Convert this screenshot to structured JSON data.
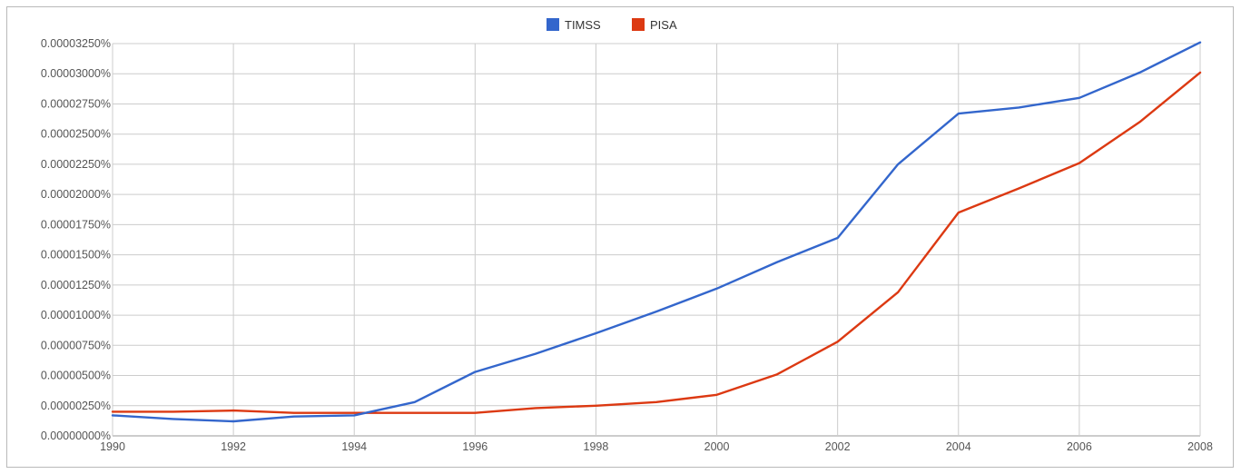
{
  "chart_data": {
    "type": "line",
    "title": "",
    "xlabel": "",
    "ylabel": "",
    "x": [
      1990,
      1991,
      1992,
      1993,
      1994,
      1995,
      1996,
      1997,
      1998,
      1999,
      2000,
      2001,
      2002,
      2003,
      2004,
      2005,
      2006,
      2007,
      2008
    ],
    "xlim": [
      1990,
      2008
    ],
    "ylim": [
      0,
      3.25e-05
    ],
    "x_ticks": [
      "1990",
      "1992",
      "1994",
      "1996",
      "1998",
      "2000",
      "2002",
      "2004",
      "2006",
      "2008"
    ],
    "y_ticks": [
      "0.00000000%",
      "0.00000250%",
      "0.00000500%",
      "0.00000750%",
      "0.00001000%",
      "0.00001250%",
      "0.00001500%",
      "0.00001750%",
      "0.00002000%",
      "0.00002250%",
      "0.00002500%",
      "0.00002750%",
      "0.00003000%",
      "0.00003250%"
    ],
    "grid": "vertical lines at labeled years, horizontal lines at y ticks",
    "legend": "top-center",
    "series": [
      {
        "name": "TIMSS",
        "color": "#3366cc",
        "values": [
          1.7e-06,
          1.4e-06,
          1.2e-06,
          1.6e-06,
          1.7e-06,
          2.8e-06,
          5.3e-06,
          6.8e-06,
          8.5e-06,
          1.03e-05,
          1.22e-05,
          1.44e-05,
          1.64e-05,
          2.25e-05,
          2.67e-05,
          2.72e-05,
          2.8e-05,
          3.01e-05,
          3.26e-05
        ]
      },
      {
        "name": "PISA",
        "color": "#dc3912",
        "values": [
          2e-06,
          2e-06,
          2.1e-06,
          1.9e-06,
          1.9e-06,
          1.9e-06,
          1.9e-06,
          2.3e-06,
          2.5e-06,
          2.8e-06,
          3.4e-06,
          5.1e-06,
          7.8e-06,
          1.19e-05,
          1.85e-05,
          2.05e-05,
          2.26e-05,
          2.6e-05,
          3.01e-05
        ]
      }
    ]
  }
}
